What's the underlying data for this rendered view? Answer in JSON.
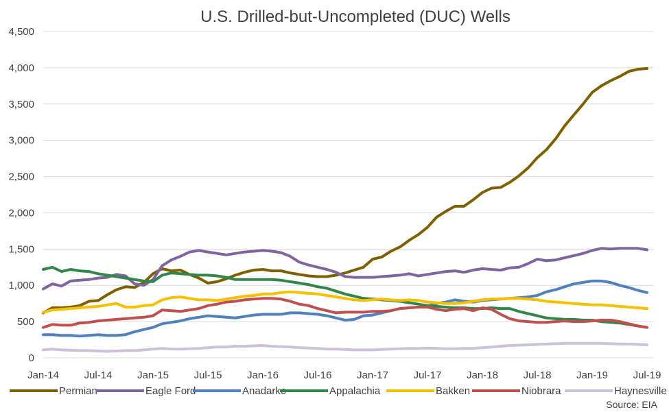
{
  "chart_data": {
    "type": "line",
    "title": "U.S. Drilled-but-Uncompleted (DUC) Wells",
    "xlabel": "",
    "ylabel": "",
    "source": "Source: EIA",
    "ylim": [
      0,
      4500
    ],
    "yticks": [
      "0",
      "500",
      "1,000",
      "1,500",
      "2,000",
      "2,500",
      "3,000",
      "3,500",
      "4,000",
      "4,500"
    ],
    "ytick_values": [
      0,
      500,
      1000,
      1500,
      2000,
      2500,
      3000,
      3500,
      4000,
      4500
    ],
    "xtick_labels": [
      "Jan-14",
      "Jul-14",
      "Jan-15",
      "Jul-15",
      "Jan-16",
      "Jul-16",
      "Jan-17",
      "Jul-17",
      "Jan-18",
      "Jul-18",
      "Jan-19",
      "Jul-19"
    ],
    "grid": true,
    "legend_position": "bottom",
    "x": [
      "Jan-14",
      "Feb-14",
      "Mar-14",
      "Apr-14",
      "May-14",
      "Jun-14",
      "Jul-14",
      "Aug-14",
      "Sep-14",
      "Oct-14",
      "Nov-14",
      "Dec-14",
      "Jan-15",
      "Feb-15",
      "Mar-15",
      "Apr-15",
      "May-15",
      "Jun-15",
      "Jul-15",
      "Aug-15",
      "Sep-15",
      "Oct-15",
      "Nov-15",
      "Dec-15",
      "Jan-16",
      "Feb-16",
      "Mar-16",
      "Apr-16",
      "May-16",
      "Jun-16",
      "Jul-16",
      "Aug-16",
      "Sep-16",
      "Oct-16",
      "Nov-16",
      "Dec-16",
      "Jan-17",
      "Feb-17",
      "Mar-17",
      "Apr-17",
      "May-17",
      "Jun-17",
      "Jul-17",
      "Aug-17",
      "Sep-17",
      "Oct-17",
      "Nov-17",
      "Dec-17",
      "Jan-18",
      "Feb-18",
      "Mar-18",
      "Apr-18",
      "May-18",
      "Jun-18",
      "Jul-18",
      "Aug-18",
      "Sep-18",
      "Oct-18",
      "Nov-18",
      "Dec-18",
      "Jan-19",
      "Feb-19",
      "Mar-19",
      "Apr-19",
      "May-19",
      "Jun-19",
      "Jul-19"
    ],
    "series": [
      {
        "name": "Permian",
        "color": "#7f6000",
        "values": [
          620,
          690,
          690,
          700,
          720,
          780,
          790,
          870,
          940,
          980,
          970,
          1040,
          1160,
          1230,
          1200,
          1210,
          1150,
          1100,
          1030,
          1050,
          1090,
          1140,
          1180,
          1210,
          1220,
          1200,
          1200,
          1170,
          1150,
          1130,
          1120,
          1120,
          1140,
          1170,
          1210,
          1250,
          1360,
          1390,
          1470,
          1530,
          1620,
          1700,
          1800,
          1940,
          2020,
          2090,
          2090,
          2180,
          2280,
          2340,
          2350,
          2420,
          2510,
          2620,
          2760,
          2870,
          3020,
          3200,
          3350,
          3500,
          3660,
          3750,
          3820,
          3880,
          3950,
          3980,
          3990
        ]
      },
      {
        "name": "Eagle Ford",
        "color": "#8064a2",
        "values": [
          950,
          1020,
          990,
          1060,
          1070,
          1080,
          1100,
          1110,
          1150,
          1130,
          1020,
          1000,
          1080,
          1270,
          1350,
          1400,
          1460,
          1480,
          1460,
          1440,
          1420,
          1440,
          1460,
          1470,
          1480,
          1470,
          1450,
          1400,
          1320,
          1280,
          1250,
          1220,
          1180,
          1120,
          1110,
          1110,
          1110,
          1120,
          1130,
          1140,
          1160,
          1130,
          1150,
          1170,
          1190,
          1200,
          1180,
          1210,
          1230,
          1220,
          1210,
          1240,
          1250,
          1300,
          1360,
          1340,
          1350,
          1380,
          1410,
          1440,
          1480,
          1510,
          1500,
          1510,
          1510,
          1510,
          1490
        ]
      },
      {
        "name": "Anadarko",
        "color": "#4f81bd",
        "values": [
          320,
          320,
          310,
          310,
          300,
          310,
          320,
          310,
          310,
          320,
          360,
          390,
          420,
          470,
          490,
          510,
          540,
          560,
          580,
          570,
          560,
          550,
          570,
          590,
          600,
          600,
          600,
          620,
          620,
          610,
          600,
          580,
          550,
          520,
          530,
          580,
          590,
          620,
          650,
          680,
          690,
          700,
          710,
          750,
          770,
          800,
          780,
          770,
          790,
          800,
          810,
          820,
          830,
          840,
          860,
          910,
          940,
          980,
          1020,
          1040,
          1060,
          1060,
          1040,
          1000,
          970,
          930,
          900
        ]
      },
      {
        "name": "Appalachia",
        "color": "#31864a",
        "values": [
          1220,
          1250,
          1190,
          1220,
          1200,
          1190,
          1160,
          1140,
          1120,
          1100,
          1080,
          1060,
          1050,
          1140,
          1170,
          1160,
          1150,
          1140,
          1140,
          1130,
          1110,
          1080,
          1080,
          1080,
          1080,
          1080,
          1070,
          1050,
          1030,
          1010,
          980,
          960,
          920,
          880,
          850,
          820,
          810,
          800,
          790,
          780,
          760,
          740,
          720,
          710,
          700,
          690,
          690,
          680,
          680,
          690,
          680,
          680,
          640,
          610,
          580,
          550,
          540,
          530,
          530,
          520,
          520,
          500,
          490,
          480,
          460,
          440,
          420
        ]
      },
      {
        "name": "Bakken",
        "color": "#f5c000",
        "values": [
          630,
          660,
          670,
          680,
          690,
          700,
          710,
          730,
          750,
          700,
          700,
          720,
          730,
          800,
          830,
          840,
          820,
          800,
          800,
          790,
          810,
          830,
          850,
          860,
          880,
          880,
          900,
          910,
          900,
          890,
          880,
          860,
          840,
          820,
          800,
          790,
          800,
          810,
          800,
          790,
          800,
          790,
          770,
          760,
          750,
          750,
          760,
          780,
          800,
          810,
          810,
          820,
          820,
          810,
          800,
          780,
          770,
          760,
          750,
          740,
          730,
          730,
          720,
          710,
          700,
          690,
          680
        ]
      },
      {
        "name": "Niobrara",
        "color": "#c0504d",
        "values": [
          420,
          460,
          450,
          450,
          480,
          490,
          510,
          520,
          530,
          540,
          550,
          560,
          580,
          660,
          650,
          640,
          660,
          680,
          720,
          740,
          770,
          780,
          800,
          810,
          820,
          820,
          810,
          780,
          740,
          720,
          680,
          650,
          620,
          630,
          630,
          630,
          640,
          640,
          650,
          680,
          690,
          700,
          700,
          670,
          650,
          670,
          680,
          650,
          690,
          670,
          600,
          540,
          510,
          500,
          490,
          490,
          500,
          510,
          500,
          500,
          510,
          520,
          520,
          500,
          470,
          440,
          420
        ]
      },
      {
        "name": "Haynesville",
        "color": "#ccc0da",
        "values": [
          110,
          120,
          110,
          105,
          100,
          100,
          95,
          90,
          95,
          100,
          100,
          110,
          120,
          130,
          120,
          120,
          125,
          130,
          140,
          150,
          150,
          160,
          160,
          165,
          170,
          160,
          155,
          150,
          140,
          135,
          130,
          120,
          120,
          115,
          110,
          110,
          110,
          115,
          120,
          125,
          130,
          130,
          135,
          130,
          125,
          125,
          130,
          130,
          140,
          150,
          160,
          170,
          175,
          180,
          185,
          190,
          195,
          200,
          200,
          200,
          200,
          200,
          195,
          190,
          190,
          185,
          180
        ]
      }
    ]
  }
}
